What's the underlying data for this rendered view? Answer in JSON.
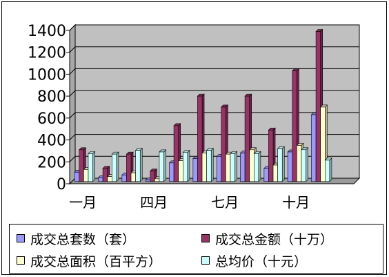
{
  "chart_data": {
    "type": "bar",
    "title": "",
    "xlabel": "",
    "ylabel": "",
    "ylim": [
      0,
      1400
    ],
    "yticks": [
      "0",
      "200",
      "400",
      "600",
      "800",
      "1000",
      "1200",
      "1400"
    ],
    "xtick_labels": [
      "一月",
      "四月",
      "七月",
      "十月"
    ],
    "categories": [
      "1",
      "2",
      "3",
      "4",
      "5",
      "6",
      "7",
      "8",
      "9",
      "10",
      "11",
      "12"
    ],
    "grid": true,
    "legend_position": "bottom",
    "background": "#c0c0c0",
    "series": [
      {
        "name": "成交总套数（套）",
        "color": "#9999ff",
        "values": [
          85,
          35,
          60,
          15,
          170,
          210,
          230,
          260,
          120,
          270,
          610,
          0
        ]
      },
      {
        "name": "成交总金额（十万）",
        "color": "#993366",
        "values": [
          290,
          120,
          250,
          95,
          510,
          780,
          680,
          780,
          470,
          1010,
          1370,
          0
        ]
      },
      {
        "name": "成交总面积（百平方）",
        "color": "#ffffcc",
        "values": [
          110,
          45,
          80,
          25,
          190,
          260,
          250,
          290,
          150,
          330,
          680,
          0
        ]
      },
      {
        "name": "总均价（十元）",
        "color": "#ccffff",
        "values": [
          255,
          250,
          285,
          270,
          265,
          285,
          255,
          255,
          300,
          290,
          195,
          0
        ]
      }
    ]
  }
}
